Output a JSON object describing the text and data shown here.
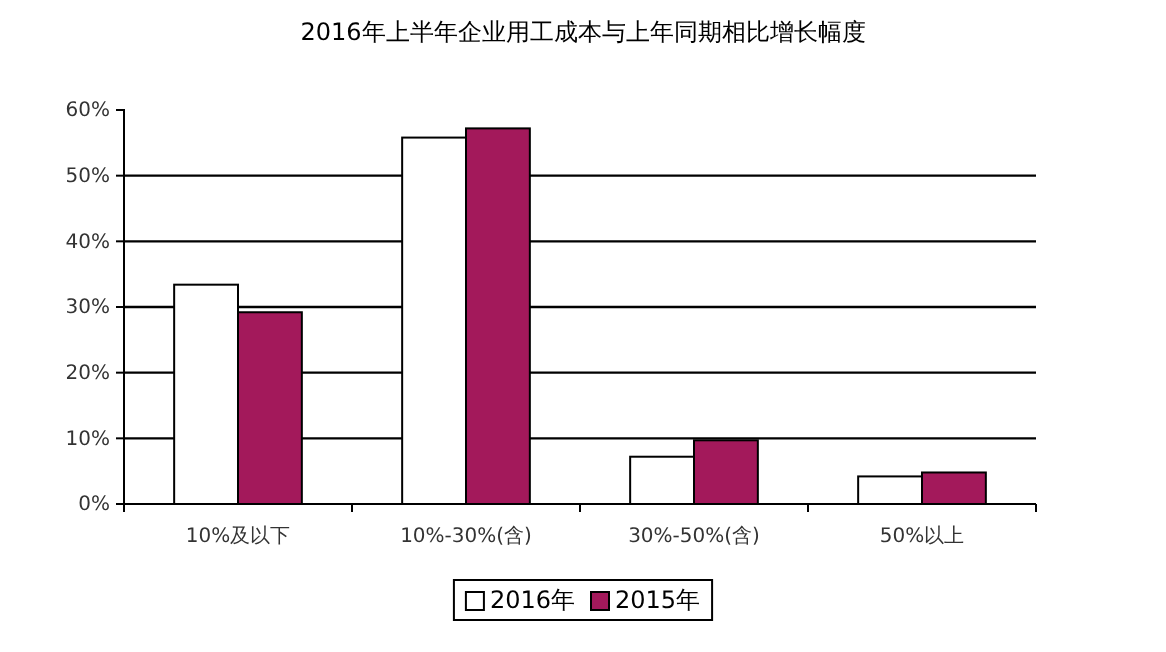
{
  "chart_data": {
    "type": "bar",
    "title": "2016年上半年企业用工成本与上年同期相比增长幅度",
    "categories": [
      "10%及以下",
      "10%-30%(含)",
      "30%-50%(含)",
      "50%以上"
    ],
    "series": [
      {
        "name": "2016年",
        "color": "#ffffff",
        "values": [
          33.4,
          55.8,
          7.2,
          4.2
        ]
      },
      {
        "name": "2015年",
        "color": "#a3195b",
        "values": [
          29.2,
          57.2,
          9.7,
          4.8
        ]
      }
    ],
    "ylim": [
      0,
      60
    ],
    "yticks": [
      {
        "value": 0,
        "label": "0%"
      },
      {
        "value": 10,
        "label": "10%"
      },
      {
        "value": 20,
        "label": "20%"
      },
      {
        "value": 30,
        "label": "30%"
      },
      {
        "value": 40,
        "label": "40%"
      },
      {
        "value": 50,
        "label": "50%"
      },
      {
        "value": 60,
        "label": "60%"
      }
    ],
    "grid": "y",
    "legend": "bottom"
  }
}
